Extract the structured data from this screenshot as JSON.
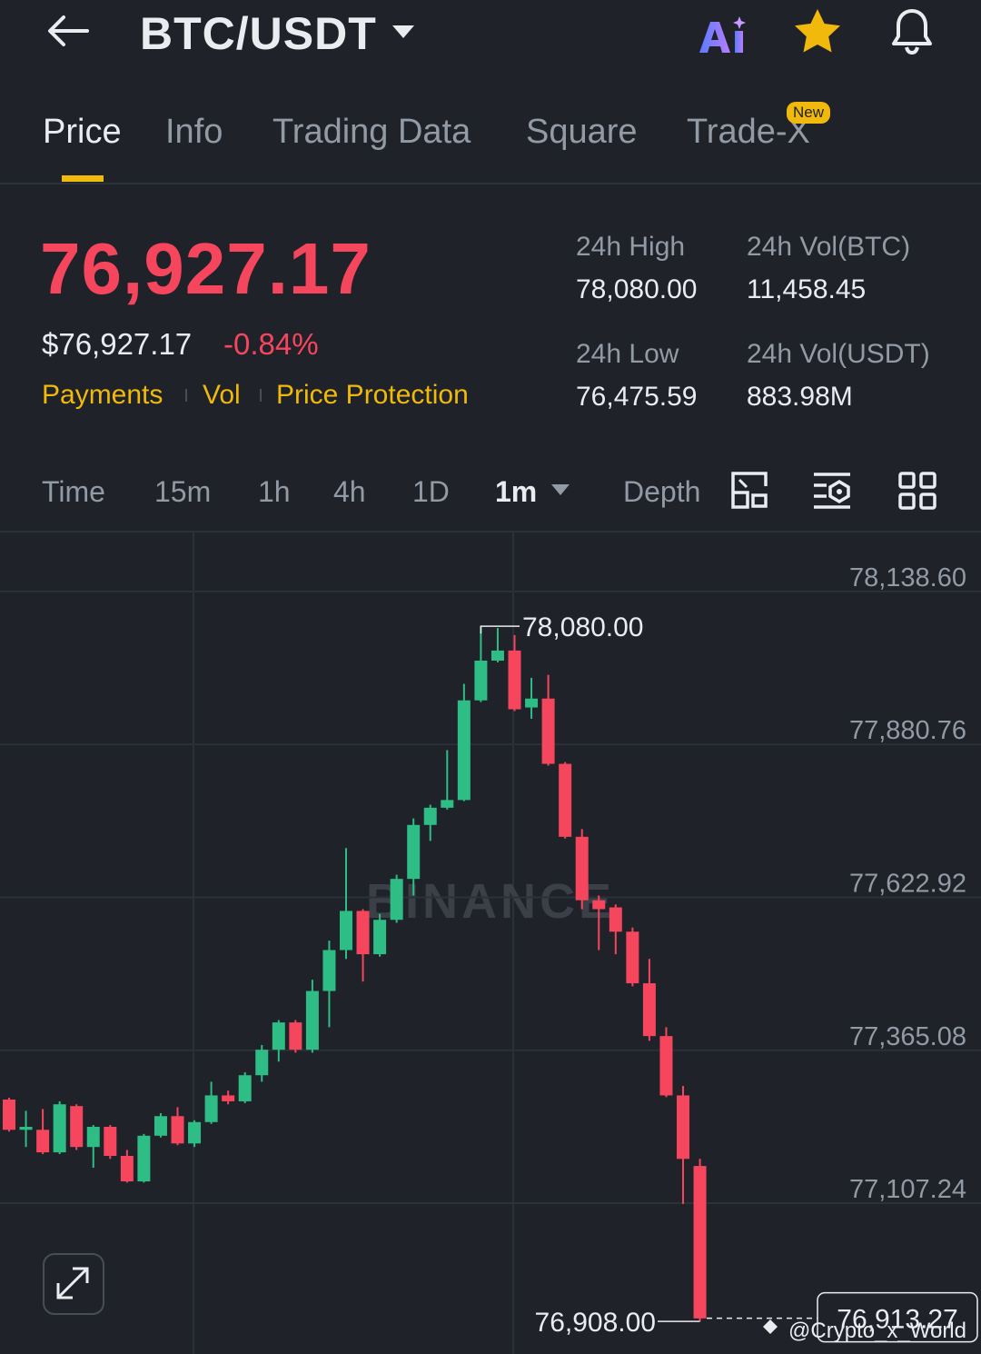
{
  "header": {
    "pair": "BTC/USDT"
  },
  "tabs": [
    "Price",
    "Info",
    "Trading Data",
    "Square",
    "Trade-X"
  ],
  "tab_badge": "New",
  "price": {
    "last": "76,927.17",
    "usd": "$76,927.17",
    "change": "-0.84%",
    "links": [
      "Payments",
      "Vol",
      "Price Protection"
    ]
  },
  "stats": [
    {
      "label": "24h High",
      "value": "78,080.00"
    },
    {
      "label": "24h Vol(BTC)",
      "value": "11,458.45"
    },
    {
      "label": "24h Low",
      "value": "76,475.59"
    },
    {
      "label": "24h Vol(USDT)",
      "value": "883.98M"
    }
  ],
  "intervals": [
    "Time",
    "15m",
    "1h",
    "4h",
    "1D",
    "1m",
    "Depth"
  ],
  "watermark": "BINANCE",
  "credit": "@Crypto_x_World",
  "chart_data": {
    "type": "candlestick",
    "up_color": "#2ebd85",
    "down_color": "#f6465d",
    "open": [
      77282,
      77231,
      77231,
      77193,
      77271,
      77202,
      77236,
      77187,
      77144,
      77221,
      77254,
      77208,
      77244,
      77289,
      77279,
      77323,
      77366,
      77412,
      77366,
      77465,
      77534,
      77600,
      77527,
      77585,
      77654,
      77745,
      77774,
      77787,
      77955,
      78022,
      78039,
      77943,
      77958,
      77848,
      77725,
      77618,
      77606,
      77565,
      77478,
      77389,
      77289,
      77170
    ],
    "high": [
      77285,
      77263,
      77266,
      77279,
      77274,
      77239,
      77239,
      77197,
      77224,
      77259,
      77269,
      77247,
      77312,
      77297,
      77328,
      77374,
      77416,
      77416,
      77484,
      77550,
      77706,
      77603,
      77595,
      77661,
      77756,
      77779,
      77871,
      77983,
      78080,
      78077,
      78065,
      77993,
      77998,
      77851,
      77738,
      77626,
      77611,
      77572,
      77519,
      77404,
      77305,
      77182
    ],
    "low": [
      77228,
      77202,
      77190,
      77190,
      77197,
      77167,
      77182,
      77142,
      77142,
      77218,
      77205,
      77202,
      77241,
      77274,
      77276,
      77312,
      77346,
      77361,
      77361,
      77404,
      77519,
      77481,
      77523,
      77580,
      77626,
      77718,
      77771,
      77785,
      77952,
      78019,
      77937,
      77924,
      77845,
      77722,
      77603,
      77534,
      77527,
      77473,
      77381,
      77286,
      77106,
      76908
    ],
    "close": [
      77231,
      77236,
      77193,
      77274,
      77202,
      77236,
      77187,
      77144,
      77221,
      77254,
      77208,
      77244,
      77289,
      77279,
      77323,
      77366,
      77412,
      77366,
      77465,
      77534,
      77600,
      77527,
      77585,
      77654,
      77745,
      77774,
      77787,
      77955,
      78022,
      78039,
      77940,
      77958,
      77848,
      77725,
      77618,
      77603,
      77565,
      77478,
      77389,
      77289,
      77182,
      76913
    ],
    "ylim": [
      76853,
      78238
    ],
    "yticks": [
      {
        "value": 78138.6,
        "label": "78,138.60"
      },
      {
        "value": 77880.76,
        "label": "77,880.76"
      },
      {
        "value": 77622.92,
        "label": "77,622.92"
      },
      {
        "value": 77365.08,
        "label": "77,365.08"
      },
      {
        "value": 77107.24,
        "label": "77,107.24"
      }
    ],
    "grid": true,
    "high_marker": {
      "value": 78080,
      "label": "78,080.00"
    },
    "low_marker": {
      "value": 76908,
      "label": "76,908.00"
    },
    "last_price": {
      "value": 76913.27,
      "label": "76,913.27"
    }
  }
}
